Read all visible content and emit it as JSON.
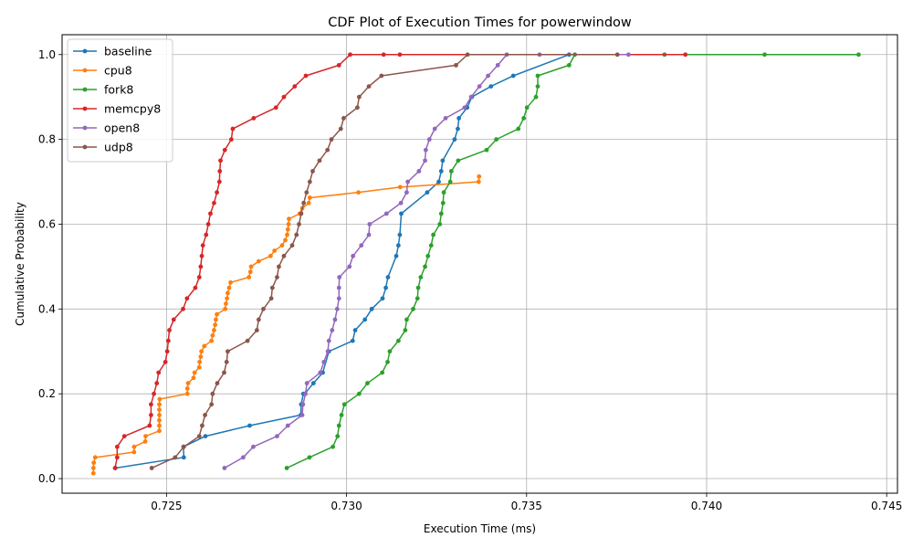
{
  "chart_data": {
    "type": "line",
    "title": "CDF Plot of Execution Times for powerwindow",
    "xlabel": "Execution Time (ms)",
    "ylabel": "Cumulative Probability",
    "xlim": [
      0.7221,
      0.7453
    ],
    "ylim": [
      -0.0344,
      1.0469
    ],
    "xticks": [
      0.725,
      0.73,
      0.735,
      0.74,
      0.745
    ],
    "xtick_labels": [
      "0.725",
      "0.730",
      "0.735",
      "0.740",
      "0.745"
    ],
    "yticks": [
      0.0,
      0.2,
      0.4,
      0.6,
      0.8,
      1.0
    ],
    "ytick_labels": [
      "0.0",
      "0.2",
      "0.4",
      "0.6",
      "0.8",
      "1.0"
    ],
    "grid": true,
    "legend_position": "upper-left",
    "series": [
      {
        "name": "baseline",
        "color": "#1f77b4",
        "x": [
          0.72358,
          0.72548,
          0.72547,
          0.72608,
          0.72731,
          0.72873,
          0.72874,
          0.7288,
          0.72884,
          0.72908,
          0.72934,
          0.72951,
          0.73017,
          0.73024,
          0.73051,
          0.7307,
          0.731,
          0.73109,
          0.73115,
          0.73138,
          0.73144,
          0.73148,
          0.73152,
          0.73224,
          0.73256,
          0.73263,
          0.73267,
          0.733,
          0.73309,
          0.73312,
          0.73335,
          0.73348,
          0.73401,
          0.73463,
          0.73618
        ],
        "y": [
          0.025,
          0.05,
          0.075,
          0.1,
          0.125,
          0.15,
          0.175,
          0.2,
          0.2,
          0.225,
          0.25,
          0.3,
          0.325,
          0.35,
          0.375,
          0.4,
          0.425,
          0.45,
          0.475,
          0.525,
          0.55,
          0.575,
          0.625,
          0.675,
          0.7,
          0.725,
          0.75,
          0.8,
          0.825,
          0.85,
          0.875,
          0.9,
          0.925,
          0.95,
          1.0
        ]
      },
      {
        "name": "cpu8",
        "color": "#ff7f0e",
        "x": [
          0.72297,
          0.72297,
          0.72298,
          0.72302,
          0.7241,
          0.7241,
          0.72441,
          0.72442,
          0.7248,
          0.7248,
          0.7248,
          0.7248,
          0.7248,
          0.7248,
          0.72481,
          0.72558,
          0.72558,
          0.7256,
          0.72575,
          0.72578,
          0.72591,
          0.72592,
          0.72595,
          0.72597,
          0.72605,
          0.72625,
          0.72628,
          0.72632,
          0.72635,
          0.72637,
          0.7264,
          0.72663,
          0.72665,
          0.72668,
          0.7267,
          0.72674,
          0.72678,
          0.72729,
          0.72733,
          0.72735,
          0.72756,
          0.72789,
          0.728,
          0.72821,
          0.7283,
          0.72835,
          0.72837,
          0.72839,
          0.7284,
          0.7287,
          0.72877,
          0.72895,
          0.72898,
          0.73033,
          0.73149,
          0.73367,
          0.73368
        ],
        "y": [
          0.0125,
          0.025,
          0.0375,
          0.05,
          0.0625,
          0.075,
          0.0875,
          0.1,
          0.1125,
          0.125,
          0.1375,
          0.15,
          0.1625,
          0.175,
          0.1875,
          0.2,
          0.2125,
          0.225,
          0.2375,
          0.25,
          0.2625,
          0.275,
          0.2875,
          0.3,
          0.3125,
          0.325,
          0.3375,
          0.35,
          0.3625,
          0.375,
          0.3875,
          0.4,
          0.4125,
          0.425,
          0.4375,
          0.45,
          0.4625,
          0.475,
          0.4875,
          0.5,
          0.5125,
          0.525,
          0.5375,
          0.55,
          0.5625,
          0.575,
          0.5875,
          0.6,
          0.6125,
          0.625,
          0.6375,
          0.65,
          0.6625,
          0.675,
          0.6875,
          0.7,
          0.7125
        ]
      },
      {
        "name": "fork8",
        "color": "#2ca02c",
        "x": [
          0.72834,
          0.72897,
          0.72962,
          0.72975,
          0.72979,
          0.72986,
          0.72994,
          0.73035,
          0.73058,
          0.73099,
          0.73114,
          0.7312,
          0.73144,
          0.73163,
          0.73167,
          0.73185,
          0.73197,
          0.73199,
          0.73206,
          0.73218,
          0.73226,
          0.73235,
          0.73241,
          0.73259,
          0.73263,
          0.73268,
          0.7327,
          0.73288,
          0.73291,
          0.7331,
          0.73389,
          0.73416,
          0.73477,
          0.73492,
          0.73501,
          0.73526,
          0.73531,
          0.73531,
          0.73618,
          0.73634,
          0.73883,
          0.74161,
          0.74422
        ],
        "y": [
          0.025,
          0.05,
          0.075,
          0.1,
          0.125,
          0.15,
          0.175,
          0.2,
          0.225,
          0.25,
          0.275,
          0.3,
          0.325,
          0.35,
          0.375,
          0.4,
          0.425,
          0.45,
          0.475,
          0.5,
          0.525,
          0.55,
          0.575,
          0.6,
          0.625,
          0.65,
          0.675,
          0.7,
          0.725,
          0.75,
          0.775,
          0.8,
          0.825,
          0.85,
          0.875,
          0.9,
          0.925,
          0.95,
          0.975,
          1.0,
          1.0,
          1.0,
          1.0
        ]
      },
      {
        "name": "memcpy8",
        "color": "#d62728",
        "x": [
          0.72357,
          0.72363,
          0.72363,
          0.72383,
          0.72453,
          0.72457,
          0.72457,
          0.72465,
          0.72473,
          0.72478,
          0.72497,
          0.72502,
          0.72505,
          0.72508,
          0.7252,
          0.72546,
          0.72557,
          0.7258,
          0.72591,
          0.72595,
          0.72598,
          0.72601,
          0.7261,
          0.72616,
          0.72622,
          0.72632,
          0.7264,
          0.72647,
          0.72648,
          0.7265,
          0.72662,
          0.7268,
          0.72684,
          0.72742,
          0.72804,
          0.72826,
          0.72856,
          0.72887,
          0.72979,
          0.7301,
          0.73103,
          0.73148,
          0.73941
        ],
        "y": [
          0.025,
          0.05,
          0.075,
          0.1,
          0.125,
          0.15,
          0.175,
          0.2,
          0.225,
          0.25,
          0.275,
          0.3,
          0.325,
          0.35,
          0.375,
          0.4,
          0.425,
          0.45,
          0.475,
          0.5,
          0.525,
          0.55,
          0.575,
          0.6,
          0.625,
          0.65,
          0.675,
          0.7,
          0.725,
          0.75,
          0.775,
          0.8,
          0.825,
          0.85,
          0.875,
          0.9,
          0.925,
          0.95,
          0.975,
          1.0,
          1.0,
          1.0,
          1.0
        ]
      },
      {
        "name": "open8",
        "color": "#9467bd",
        "x": [
          0.72661,
          0.72713,
          0.72741,
          0.72807,
          0.72837,
          0.72877,
          0.72879,
          0.72886,
          0.7289,
          0.72927,
          0.72937,
          0.72948,
          0.72951,
          0.7296,
          0.72968,
          0.72974,
          0.72979,
          0.72979,
          0.7298,
          0.73008,
          0.73018,
          0.73041,
          0.73062,
          0.73064,
          0.73111,
          0.73151,
          0.73167,
          0.7317,
          0.73201,
          0.73218,
          0.7322,
          0.7323,
          0.73245,
          0.73275,
          0.73328,
          0.73346,
          0.73369,
          0.73393,
          0.7342,
          0.73445,
          0.73536,
          0.73783
        ],
        "y": [
          0.025,
          0.05,
          0.075,
          0.1,
          0.125,
          0.15,
          0.175,
          0.2,
          0.225,
          0.25,
          0.275,
          0.3,
          0.325,
          0.35,
          0.375,
          0.4,
          0.425,
          0.45,
          0.475,
          0.5,
          0.525,
          0.55,
          0.575,
          0.6,
          0.625,
          0.65,
          0.675,
          0.7,
          0.725,
          0.75,
          0.775,
          0.8,
          0.825,
          0.85,
          0.875,
          0.9,
          0.925,
          0.95,
          0.975,
          1.0,
          1.0,
          1.0
        ]
      },
      {
        "name": "udp8",
        "color": "#8c564b",
        "x": [
          0.72459,
          0.72524,
          0.72548,
          0.72591,
          0.72599,
          0.72607,
          0.72625,
          0.72628,
          0.72641,
          0.7266,
          0.72667,
          0.7267,
          0.72725,
          0.72751,
          0.72756,
          0.72769,
          0.72791,
          0.72794,
          0.72807,
          0.72812,
          0.72826,
          0.72849,
          0.72861,
          0.72868,
          0.72874,
          0.72881,
          0.72889,
          0.72898,
          0.72906,
          0.72925,
          0.72947,
          0.72958,
          0.72984,
          0.72992,
          0.7303,
          0.73035,
          0.73062,
          0.73097,
          0.73304,
          0.73336,
          0.73752
        ],
        "y": [
          0.025,
          0.05,
          0.075,
          0.1,
          0.125,
          0.15,
          0.175,
          0.2,
          0.225,
          0.25,
          0.275,
          0.3,
          0.325,
          0.35,
          0.375,
          0.4,
          0.425,
          0.45,
          0.475,
          0.5,
          0.525,
          0.55,
          0.575,
          0.6,
          0.625,
          0.65,
          0.675,
          0.7,
          0.725,
          0.75,
          0.775,
          0.8,
          0.825,
          0.85,
          0.875,
          0.9,
          0.925,
          0.95,
          0.975,
          1.0,
          1.0
        ]
      }
    ]
  }
}
